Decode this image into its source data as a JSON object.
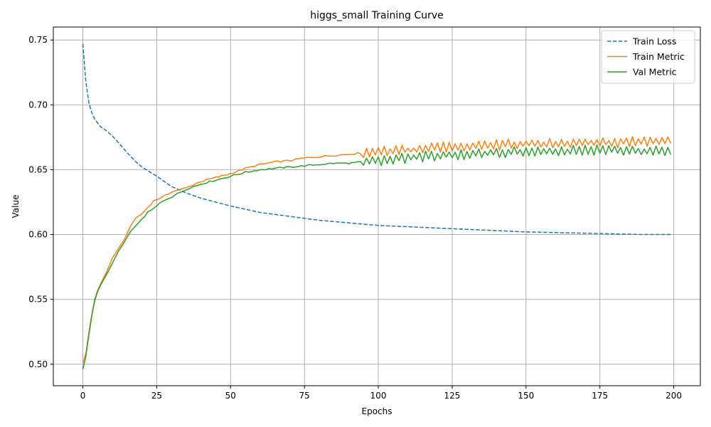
{
  "chart_data": {
    "type": "line",
    "title": "higgs_small Training Curve",
    "xlabel": "Epochs",
    "ylabel": "Value",
    "xlim": [
      -10,
      209
    ],
    "ylim": [
      0.4834,
      0.76
    ],
    "xticks": [
      0,
      25,
      50,
      75,
      100,
      125,
      150,
      175,
      200
    ],
    "yticks": [
      0.5,
      0.55,
      0.6,
      0.65,
      0.7,
      0.75
    ],
    "ytick_labels": [
      "0.50",
      "0.55",
      "0.60",
      "0.65",
      "0.70",
      "0.75"
    ],
    "grid": true,
    "legend_position": "top-right",
    "series": [
      {
        "name": "Train Loss",
        "color": "#1f77b4",
        "style": "dashed",
        "anchors": [
          [
            0,
            0.747
          ],
          [
            1,
            0.718
          ],
          [
            2,
            0.702
          ],
          [
            3,
            0.694
          ],
          [
            4,
            0.689
          ],
          [
            5,
            0.686
          ],
          [
            6,
            0.683
          ],
          [
            8,
            0.68
          ],
          [
            10,
            0.676
          ],
          [
            12,
            0.671
          ],
          [
            15,
            0.663
          ],
          [
            18,
            0.656
          ],
          [
            20,
            0.652
          ],
          [
            25,
            0.645
          ],
          [
            30,
            0.637
          ],
          [
            35,
            0.632
          ],
          [
            40,
            0.628
          ],
          [
            45,
            0.625
          ],
          [
            50,
            0.622
          ],
          [
            60,
            0.617
          ],
          [
            70,
            0.614
          ],
          [
            80,
            0.611
          ],
          [
            90,
            0.609
          ],
          [
            100,
            0.607
          ],
          [
            110,
            0.606
          ],
          [
            120,
            0.605
          ],
          [
            130,
            0.604
          ],
          [
            140,
            0.603
          ],
          [
            150,
            0.602
          ],
          [
            160,
            0.6015
          ],
          [
            170,
            0.601
          ],
          [
            180,
            0.6005
          ],
          [
            190,
            0.6
          ],
          [
            199,
            0.6
          ]
        ]
      },
      {
        "name": "Train Metric",
        "color": "#ff7f0e",
        "style": "solid",
        "anchors": [
          [
            0,
            0.501
          ],
          [
            1,
            0.508
          ],
          [
            2,
            0.524
          ],
          [
            3,
            0.538
          ],
          [
            4,
            0.55
          ],
          [
            5,
            0.557
          ],
          [
            6,
            0.562
          ],
          [
            8,
            0.571
          ],
          [
            10,
            0.582
          ],
          [
            12,
            0.589
          ],
          [
            14,
            0.596
          ],
          [
            16,
            0.606
          ],
          [
            18,
            0.613
          ],
          [
            20,
            0.616
          ],
          [
            22,
            0.621
          ],
          [
            24,
            0.626
          ],
          [
            26,
            0.628
          ],
          [
            28,
            0.63
          ],
          [
            30,
            0.633
          ],
          [
            35,
            0.636
          ],
          [
            40,
            0.641
          ],
          [
            45,
            0.644
          ],
          [
            50,
            0.647
          ],
          [
            55,
            0.651
          ],
          [
            60,
            0.654
          ],
          [
            65,
            0.656
          ],
          [
            70,
            0.657
          ],
          [
            75,
            0.659
          ],
          [
            80,
            0.66
          ],
          [
            85,
            0.661
          ],
          [
            90,
            0.662
          ],
          [
            95,
            0.663
          ],
          [
            100,
            0.664
          ],
          [
            110,
            0.665
          ],
          [
            120,
            0.667
          ],
          [
            130,
            0.668
          ],
          [
            140,
            0.669
          ],
          [
            150,
            0.67
          ],
          [
            160,
            0.67
          ],
          [
            170,
            0.671
          ],
          [
            180,
            0.671
          ],
          [
            190,
            0.672
          ],
          [
            199,
            0.672
          ]
        ],
        "noise_from": 95,
        "noise_amp": 0.003
      },
      {
        "name": "Val Metric",
        "color": "#2ca02c",
        "style": "solid",
        "anchors": [
          [
            0,
            0.496
          ],
          [
            1,
            0.506
          ],
          [
            2,
            0.522
          ],
          [
            3,
            0.537
          ],
          [
            4,
            0.549
          ],
          [
            5,
            0.556
          ],
          [
            6,
            0.561
          ],
          [
            8,
            0.569
          ],
          [
            10,
            0.578
          ],
          [
            12,
            0.587
          ],
          [
            14,
            0.594
          ],
          [
            16,
            0.602
          ],
          [
            18,
            0.607
          ],
          [
            20,
            0.612
          ],
          [
            22,
            0.617
          ],
          [
            24,
            0.62
          ],
          [
            26,
            0.624
          ],
          [
            28,
            0.627
          ],
          [
            30,
            0.629
          ],
          [
            35,
            0.635
          ],
          [
            40,
            0.639
          ],
          [
            45,
            0.642
          ],
          [
            50,
            0.645
          ],
          [
            55,
            0.648
          ],
          [
            60,
            0.65
          ],
          [
            65,
            0.651
          ],
          [
            70,
            0.652
          ],
          [
            75,
            0.653
          ],
          [
            80,
            0.654
          ],
          [
            85,
            0.655
          ],
          [
            90,
            0.655
          ],
          [
            95,
            0.656
          ],
          [
            100,
            0.657
          ],
          [
            110,
            0.659
          ],
          [
            120,
            0.661
          ],
          [
            130,
            0.662
          ],
          [
            140,
            0.663
          ],
          [
            150,
            0.664
          ],
          [
            160,
            0.664
          ],
          [
            170,
            0.665
          ],
          [
            180,
            0.665
          ],
          [
            190,
            0.664
          ],
          [
            199,
            0.664
          ]
        ],
        "noise_from": 95,
        "noise_amp": 0.003
      }
    ],
    "x_max_epoch": 199
  }
}
